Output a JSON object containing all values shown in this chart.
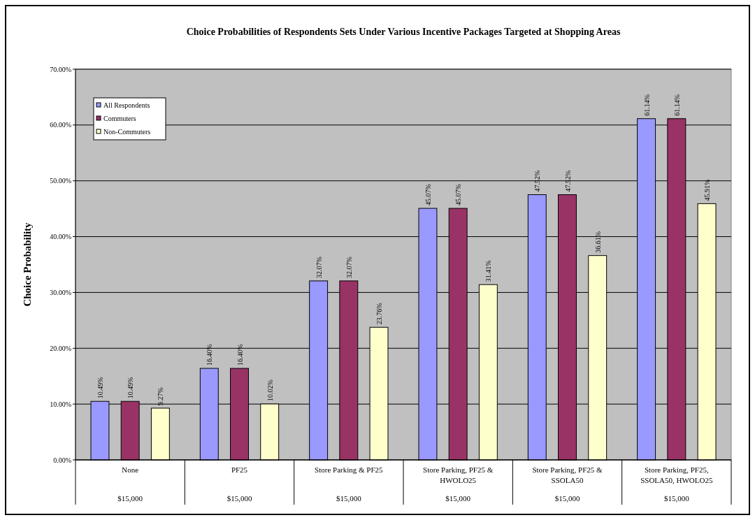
{
  "chart_data": {
    "type": "bar",
    "title": "Choice Probabilities of Respondents Sets Under Various Incentive Packages Targeted at Shopping Areas",
    "ylabel": "Choice Probability",
    "categories": [
      "None",
      "PF25",
      "Store Parking & PF25",
      "Store Parking, PF25 & HWOLO25",
      "Store Parking, PF25 & SSOLA50",
      "Store Parking, PF25, SSOLA50, HWOLO25"
    ],
    "annotations": [
      "$15,000",
      "$15,000",
      "$15,000",
      "$15,000",
      "$15,000",
      "$15,000"
    ],
    "series": [
      {
        "name": "All Respondents",
        "color": "#9999ff",
        "values": [
          10.49,
          16.4,
          32.07,
          45.07,
          47.52,
          61.14
        ],
        "value_labels": [
          "10.49%",
          "16.40%",
          "32.07%",
          "45.07%",
          "47.52%",
          "61.14%"
        ]
      },
      {
        "name": "Commuters",
        "color": "#993366",
        "values": [
          10.49,
          16.4,
          32.07,
          45.07,
          47.52,
          61.14
        ],
        "value_labels": [
          "10.49%",
          "16.40%",
          "32.07%",
          "45.07%",
          "47.52%",
          "61.14%"
        ]
      },
      {
        "name": "Non-Commuters",
        "color": "#ffffcc",
        "values": [
          9.27,
          10.02,
          23.76,
          31.41,
          36.61,
          45.91
        ],
        "value_labels": [
          "9.27%",
          "10.02%",
          "23.76%",
          "31.41%",
          "36.61%",
          "45.91%"
        ]
      }
    ],
    "ylim": [
      0,
      70
    ],
    "yticks": [
      {
        "value": 0,
        "label": "0.00%"
      },
      {
        "value": 10,
        "label": "10.00%"
      },
      {
        "value": 20,
        "label": "20.00%"
      },
      {
        "value": 30,
        "label": "30.00%"
      },
      {
        "value": 40,
        "label": "40.00%"
      },
      {
        "value": 50,
        "label": "50.00%"
      },
      {
        "value": 60,
        "label": "60.00%"
      },
      {
        "value": 70,
        "label": "70.00%"
      }
    ],
    "grid": "y",
    "legend": "top left"
  }
}
